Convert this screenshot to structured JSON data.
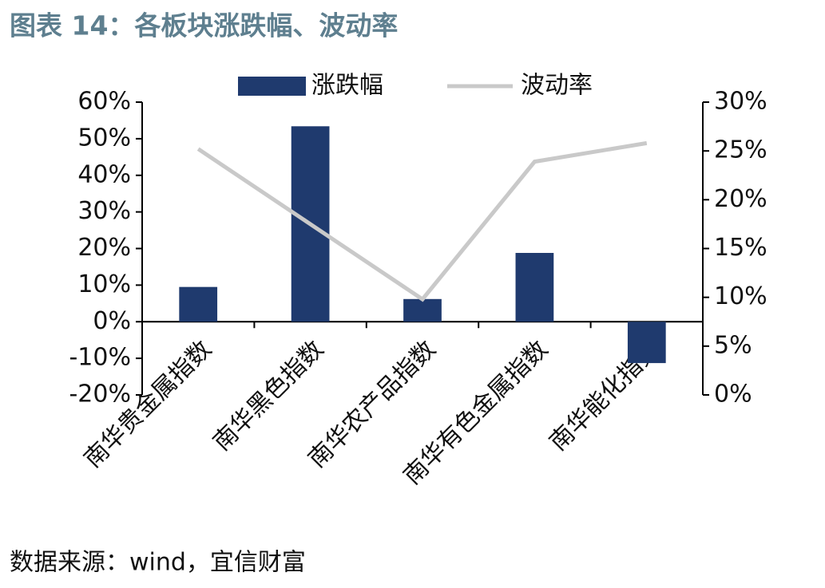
{
  "chart_data": {
    "type": "bar-line",
    "title": "图表 14：各板块涨跌幅、波动率",
    "source": "数据来源：wind，宜信财富",
    "categories": [
      "南华贵金属指数",
      "南华黑色指数",
      "南华农产品指数",
      "南华有色金属指数",
      "南华能化指数"
    ],
    "series": [
      {
        "name": "涨跌幅",
        "color": "#1f3a6e",
        "type": "bar",
        "values": [
          9.5,
          53.4,
          6.2,
          18.8,
          -11.3
        ]
      },
      {
        "name": "波动率",
        "color": "#c9c9c9",
        "type": "line",
        "axis": "y2",
        "values": [
          25.2,
          17.5,
          9.8,
          23.9,
          25.8
        ]
      }
    ],
    "ylim": [
      -20,
      60
    ],
    "yticks": [
      {
        "value": -20,
        "label": "-20%"
      },
      {
        "value": -10,
        "label": "-10%"
      },
      {
        "value": 0,
        "label": "0%"
      },
      {
        "value": 10,
        "label": "10%"
      },
      {
        "value": 20,
        "label": "20%"
      },
      {
        "value": 30,
        "label": "30%"
      },
      {
        "value": 40,
        "label": "40%"
      },
      {
        "value": 50,
        "label": "50%"
      },
      {
        "value": 60,
        "label": "60%"
      }
    ],
    "y2lim": [
      0,
      30
    ],
    "y2ticks": [
      {
        "value": 0,
        "label": "0%"
      },
      {
        "value": 5,
        "label": "5%"
      },
      {
        "value": 10,
        "label": "10%"
      },
      {
        "value": 15,
        "label": "15%"
      },
      {
        "value": 20,
        "label": "20%"
      },
      {
        "value": 25,
        "label": "25%"
      },
      {
        "value": 30,
        "label": "30%"
      }
    ]
  }
}
